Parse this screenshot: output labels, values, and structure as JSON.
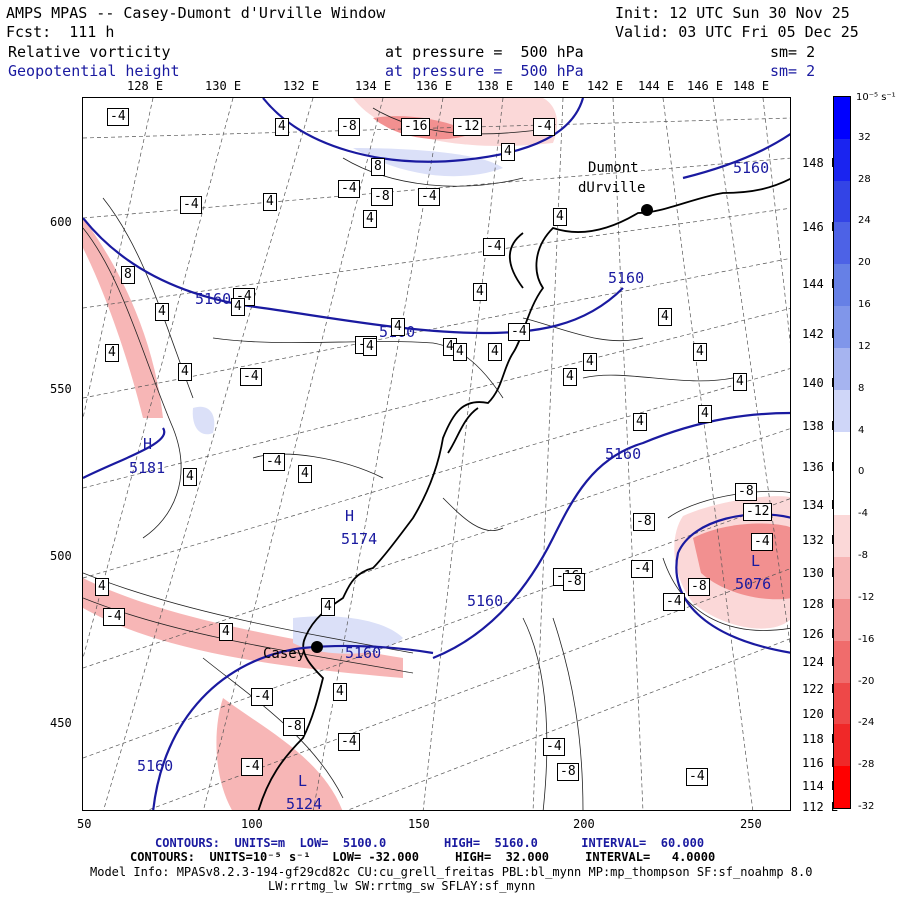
{
  "header": {
    "title": "AMPS MPAS -- Casey-Dumont d'Urville Window",
    "init": "Init: 12 UTC Sun 30 Nov 25",
    "fcst": "Fcst:  111 h",
    "valid": "Valid: 03 UTC Fri 05 Dec 25",
    "field1": "Relative vorticity",
    "field1_level": "at pressure =  500 hPa",
    "field1_sm": "sm= 2",
    "field2": "Geopotential height",
    "field2_level": "at pressure =  500 hPa",
    "field2_sm": "sm= 2"
  },
  "axes": {
    "top_lon": [
      "128 E",
      "130 E",
      "132 E",
      "134 E",
      "136 E",
      "138 E",
      "140 E",
      "142 E",
      "144 E",
      "146 E",
      "148 E"
    ],
    "right_lon": [
      "148 E",
      "146 E",
      "144 E",
      "142 E",
      "140 E",
      "138 E",
      "136 E",
      "134 E",
      "132 E",
      "130 E",
      "128 E",
      "126 E",
      "124 E",
      "122 E",
      "120 E",
      "118 E",
      "116 E",
      "114 E",
      "112 E"
    ],
    "left_y": [
      "600",
      "550",
      "500",
      "450"
    ],
    "bottom_x": [
      "50",
      "100",
      "150",
      "200",
      "250"
    ]
  },
  "colorbar": {
    "unit": "10⁻⁵ s⁻¹",
    "labels": [
      "32",
      "28",
      "24",
      "20",
      "16",
      "12",
      "8",
      "4",
      "0",
      "-4",
      "-8",
      "-12",
      "-16",
      "-20",
      "-24",
      "-28",
      "-32"
    ],
    "colors": [
      "#0000ff",
      "#1a24f0",
      "#3344e6",
      "#4d62e6",
      "#6680e6",
      "#8096ea",
      "#a6b4f0",
      "#cfd6f8",
      "#ffffff",
      "#ffffff",
      "#fbd8d8",
      "#f7b6b6",
      "#f29090",
      "#f06c6c",
      "#ee4848",
      "#f02828",
      "#ff0000"
    ]
  },
  "map": {
    "stations": [
      {
        "name": "Dumont",
        "name2": "dUrville"
      },
      {
        "name": "Casey",
        "name2": ""
      }
    ],
    "height_labels": [
      "5160",
      "5160",
      "5160",
      "5160",
      "5160",
      "5160",
      "5160",
      "5160",
      "5160"
    ],
    "highs": [
      {
        "symbol": "H",
        "value": "5181"
      },
      {
        "symbol": "H",
        "value": "5174"
      }
    ],
    "lows": [
      {
        "symbol": "L",
        "value": "5076"
      },
      {
        "symbol": "L",
        "value": "5124"
      }
    ],
    "vort_labels": [
      "-4",
      "4",
      "-8",
      "-16",
      "-12",
      "-4",
      "4",
      "8",
      "-4",
      "-8",
      "-4",
      "4",
      "-4",
      "4",
      "-4",
      "4",
      "8",
      "4",
      "-4",
      "4",
      "4",
      "4",
      "-4",
      "4",
      "-4",
      "4",
      "4",
      "4",
      "4",
      "4",
      "4",
      "4",
      "-4",
      "-4",
      "4",
      "4",
      "4",
      "4",
      "4",
      "4",
      "-8",
      "4",
      "-4",
      "-12",
      "-8",
      "-8",
      "-4",
      "-16",
      "-4",
      "-8",
      "4",
      "-4",
      "4",
      "4",
      "-4",
      "-4",
      "-8",
      "-8",
      "-8",
      "-4",
      "-4",
      "-4",
      "4"
    ]
  },
  "footer": {
    "contours1": "CONTOURS:  UNITS=m  LOW=  5100.0        HIGH=  5160.0      INTERVAL=  60.000",
    "contours2": "CONTOURS:  UNITS=10⁻⁵ s⁻¹   LOW= -32.000     HIGH=  32.000     INTERVAL=   4.0000",
    "model_info": "Model Info: MPASv8.2.3-194-gf29cd82c CU:cu_grell_freitas PBL:bl_mynn MP:mp_thompson SF:sf_noahmp 8.0",
    "model_info2": "LW:rrtmg_lw SW:rrtmg_sw SFLAY:sf_mynn"
  }
}
